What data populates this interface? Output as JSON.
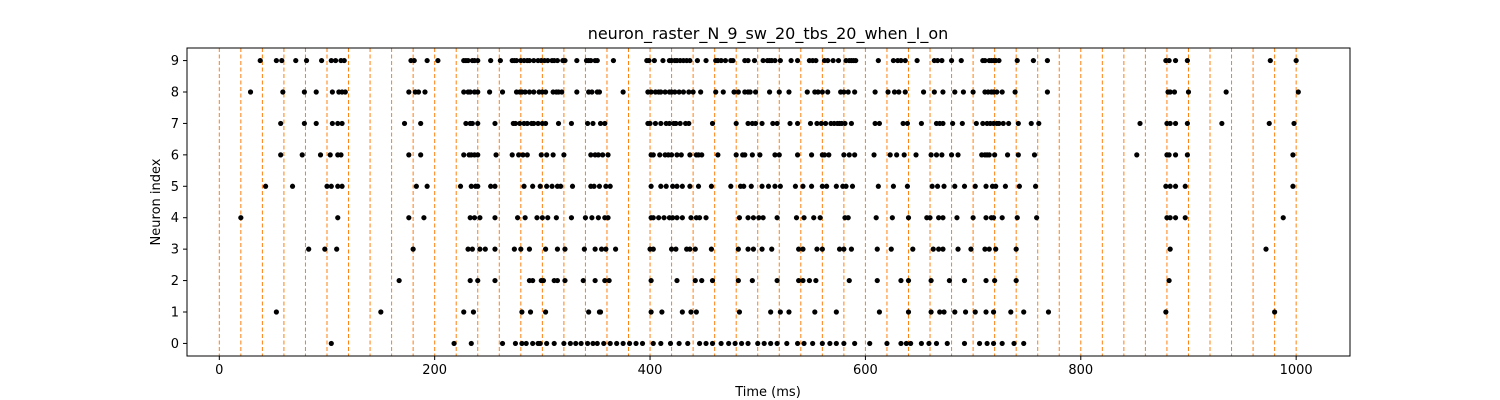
{
  "chart_data": {
    "type": "scatter",
    "title": "neuron_raster_N_9_sw_20_tbs_20_when_I_on",
    "xlabel": "Time (ms)",
    "ylabel": "Neuron index",
    "xlim": [
      -30,
      1050
    ],
    "ylim": [
      -0.4,
      9.4
    ],
    "xticks": [
      0,
      200,
      400,
      600,
      800,
      1000
    ],
    "yticks": [
      0,
      1,
      2,
      3,
      4,
      5,
      6,
      7,
      8,
      9
    ],
    "grid": false,
    "marker_color": "#000000",
    "vline_color": "#ff7f0e",
    "vline_style": "dashed",
    "stimulus_times": [
      0,
      20,
      40,
      60,
      80,
      100,
      120,
      140,
      160,
      180,
      200,
      220,
      240,
      260,
      280,
      300,
      320,
      340,
      360,
      380,
      400,
      420,
      440,
      460,
      480,
      500,
      520,
      540,
      560,
      580,
      600,
      620,
      640,
      660,
      680,
      700,
      720,
      740,
      760,
      780,
      800,
      820,
      840,
      860,
      880,
      900,
      920,
      940,
      960,
      980,
      1000
    ],
    "spikes": [
      {
        "neuron": 9,
        "times": [
          38,
          53,
          58,
          71,
          81,
          95,
          104,
          108,
          113,
          116,
          178,
          181,
          193,
          203,
          227,
          229,
          231,
          235,
          237,
          240,
          252,
          261,
          272,
          274,
          276,
          280,
          283,
          286,
          288,
          292,
          296,
          299,
          302,
          305,
          309,
          311,
          314,
          319,
          321,
          332,
          341,
          343,
          345,
          349,
          351,
          366,
          397,
          399,
          404,
          412,
          418,
          420,
          423,
          425,
          428,
          431,
          434,
          437,
          444,
          452,
          461,
          463,
          466,
          470,
          475,
          477,
          488,
          491,
          497,
          505,
          509,
          511,
          513,
          516,
          521,
          531,
          537,
          548,
          551,
          554,
          562,
          565,
          570,
          575,
          582,
          585,
          587,
          589,
          591,
          612,
          626,
          630,
          633,
          637,
          648,
          664,
          667,
          671,
          680,
          689,
          709,
          711,
          715,
          717,
          719,
          721,
          724,
          741,
          756,
          769,
          879,
          882,
          888,
          899,
          976,
          1000
        ]
      },
      {
        "neuron": 8,
        "times": [
          29,
          59,
          79,
          90,
          105,
          111,
          114,
          117,
          176,
          182,
          185,
          191,
          227,
          231,
          233,
          237,
          240,
          251,
          263,
          276,
          279,
          281,
          284,
          288,
          292,
          297,
          300,
          303,
          310,
          313,
          315,
          318,
          332,
          343,
          346,
          351,
          353,
          375,
          398,
          401,
          405,
          408,
          410,
          414,
          418,
          420,
          423,
          427,
          431,
          436,
          440,
          447,
          461,
          468,
          478,
          482,
          488,
          491,
          493,
          498,
          511,
          520,
          529,
          546,
          553,
          556,
          560,
          565,
          577,
          580,
          584,
          590,
          609,
          621,
          627,
          631,
          637,
          654,
          664,
          672,
          683,
          691,
          700,
          711,
          714,
          717,
          719,
          722,
          727,
          739,
          769,
          881,
          883,
          887,
          900,
          935,
          1002
        ]
      },
      {
        "neuron": 7,
        "times": [
          57,
          79,
          90,
          105,
          110,
          114,
          172,
          187,
          229,
          233,
          235,
          240,
          256,
          273,
          275,
          279,
          283,
          286,
          290,
          292,
          296,
          300,
          303,
          315,
          327,
          342,
          347,
          354,
          358,
          398,
          400,
          405,
          410,
          415,
          418,
          422,
          424,
          428,
          433,
          436,
          458,
          480,
          491,
          495,
          498,
          504,
          514,
          518,
          530,
          537,
          549,
          555,
          559,
          563,
          568,
          571,
          574,
          576,
          578,
          581,
          587,
          609,
          613,
          635,
          639,
          652,
          666,
          669,
          672,
          681,
          690,
          703,
          709,
          713,
          716,
          719,
          722,
          724,
          728,
          733,
          742,
          754,
          761,
          855,
          880,
          883,
          888,
          899,
          931,
          975,
          998
        ]
      },
      {
        "neuron": 6,
        "times": [
          57,
          77,
          94,
          103,
          110,
          113,
          176,
          187,
          227,
          232,
          234,
          237,
          240,
          257,
          272,
          278,
          282,
          286,
          299,
          304,
          310,
          320,
          345,
          349,
          352,
          356,
          361,
          401,
          403,
          409,
          414,
          417,
          420,
          425,
          429,
          437,
          443,
          445,
          448,
          463,
          480,
          486,
          488,
          495,
          502,
          516,
          520,
          537,
          550,
          560,
          562,
          566,
          580,
          585,
          590,
          608,
          623,
          629,
          636,
          647,
          661,
          666,
          671,
          680,
          686,
          708,
          711,
          713,
          715,
          720,
          732,
          742,
          757,
          852,
          880,
          882,
          888,
          899,
          997
        ]
      },
      {
        "neuron": 5,
        "times": [
          43,
          68,
          100,
          104,
          110,
          114,
          183,
          193,
          224,
          234,
          238,
          240,
          252,
          256,
          283,
          291,
          298,
          304,
          309,
          314,
          317,
          328,
          345,
          348,
          353,
          359,
          363,
          401,
          410,
          415,
          421,
          425,
          430,
          437,
          445,
          457,
          475,
          484,
          487,
          494,
          504,
          510,
          516,
          521,
          535,
          542,
          550,
          560,
          564,
          573,
          579,
          582,
          588,
          612,
          626,
          639,
          662,
          667,
          673,
          683,
          692,
          702,
          712,
          718,
          721,
          730,
          743,
          758,
          879,
          883,
          888,
          897,
          997
        ]
      },
      {
        "neuron": 4,
        "times": [
          20,
          110,
          176,
          190,
          233,
          237,
          242,
          256,
          277,
          284,
          295,
          300,
          305,
          313,
          327,
          340,
          346,
          352,
          358,
          361,
          401,
          403,
          408,
          413,
          418,
          421,
          425,
          430,
          438,
          443,
          446,
          452,
          483,
          491,
          496,
          501,
          505,
          518,
          536,
          543,
          552,
          558,
          581,
          584,
          610,
          625,
          640,
          657,
          660,
          668,
          672,
          685,
          700,
          712,
          717,
          719,
          727,
          741,
          759,
          880,
          883,
          888,
          897,
          988
        ]
      },
      {
        "neuron": 3,
        "times": [
          83,
          98,
          109,
          180,
          231,
          235,
          242,
          247,
          256,
          274,
          280,
          288,
          303,
          314,
          321,
          339,
          349,
          355,
          359,
          368,
          400,
          403,
          420,
          424,
          434,
          437,
          442,
          457,
          482,
          491,
          496,
          504,
          513,
          538,
          542,
          555,
          560,
          576,
          580,
          587,
          611,
          624,
          644,
          663,
          668,
          672,
          686,
          698,
          711,
          715,
          721,
          740,
          883,
          972
        ]
      },
      {
        "neuron": 2,
        "times": [
          167,
          233,
          240,
          256,
          288,
          291,
          299,
          301,
          311,
          314,
          321,
          338,
          349,
          358,
          362,
          401,
          425,
          442,
          448,
          458,
          482,
          495,
          518,
          538,
          542,
          548,
          554,
          585,
          611,
          633,
          640,
          661,
          678,
          692,
          712,
          720,
          740,
          882
        ]
      },
      {
        "neuron": 1,
        "times": [
          53,
          150,
          227,
          236,
          281,
          289,
          303,
          343,
          353,
          354,
          401,
          411,
          430,
          438,
          443,
          483,
          512,
          521,
          529,
          553,
          573,
          613,
          640,
          661,
          669,
          673,
          683,
          693,
          702,
          712,
          719,
          735,
          747,
          770,
          879,
          980
        ]
      },
      {
        "neuron": 0,
        "times": [
          104,
          218,
          234,
          263,
          275,
          281,
          285,
          291,
          296,
          298,
          304,
          311,
          320,
          326,
          331,
          336,
          342,
          347,
          351,
          357,
          363,
          369,
          375,
          381,
          387,
          393,
          403,
          410,
          419,
          427,
          435,
          446,
          452,
          458,
          466,
          473,
          479,
          485,
          491,
          500,
          506,
          512,
          518,
          527,
          537,
          543,
          551,
          560,
          567,
          573,
          580,
          590,
          604,
          620,
          633,
          638,
          642,
          652,
          659,
          666,
          676,
          692,
          706,
          713,
          719,
          727,
          738,
          747
        ]
      }
    ]
  }
}
